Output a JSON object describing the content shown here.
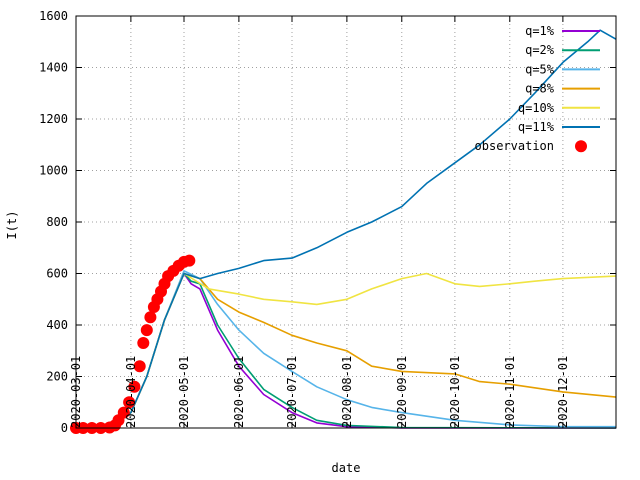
{
  "chart_data": {
    "type": "line",
    "title": "",
    "xlabel": "date",
    "ylabel": "I(t)",
    "xlim": [
      "2020-03-01",
      "2020-12-31"
    ],
    "ylim": [
      0,
      1600
    ],
    "grid": true,
    "legend_position": "top-right",
    "y_ticks": [
      0,
      200,
      400,
      600,
      800,
      1000,
      1200,
      1400,
      1600
    ],
    "x_ticks": [
      "2020-03-01",
      "2020-04-01",
      "2020-05-01",
      "2020-06-01",
      "2020-07-01",
      "2020-08-01",
      "2020-09-01",
      "2020-10-01",
      "2020-11-01",
      "2020-12-01"
    ],
    "series": [
      {
        "name": "q=1%",
        "color": "#9400d3",
        "points": [
          [
            "2020-03-01",
            0
          ],
          [
            "2020-03-20",
            0
          ],
          [
            "2020-04-01",
            60
          ],
          [
            "2020-04-10",
            200
          ],
          [
            "2020-04-20",
            420
          ],
          [
            "2020-05-01",
            600
          ],
          [
            "2020-05-05",
            560
          ],
          [
            "2020-05-10",
            540
          ],
          [
            "2020-05-15",
            460
          ],
          [
            "2020-05-20",
            380
          ],
          [
            "2020-06-01",
            240
          ],
          [
            "2020-06-15",
            130
          ],
          [
            "2020-07-01",
            60
          ],
          [
            "2020-07-15",
            20
          ],
          [
            "2020-08-01",
            5
          ],
          [
            "2020-09-01",
            0
          ],
          [
            "2020-12-31",
            0
          ]
        ]
      },
      {
        "name": "q=2%",
        "color": "#009e73",
        "points": [
          [
            "2020-03-01",
            0
          ],
          [
            "2020-03-20",
            0
          ],
          [
            "2020-04-01",
            60
          ],
          [
            "2020-04-10",
            200
          ],
          [
            "2020-04-20",
            420
          ],
          [
            "2020-05-01",
            600
          ],
          [
            "2020-05-05",
            570
          ],
          [
            "2020-05-10",
            560
          ],
          [
            "2020-05-15",
            480
          ],
          [
            "2020-05-20",
            400
          ],
          [
            "2020-06-01",
            270
          ],
          [
            "2020-06-15",
            150
          ],
          [
            "2020-07-01",
            80
          ],
          [
            "2020-07-15",
            30
          ],
          [
            "2020-08-01",
            10
          ],
          [
            "2020-09-01",
            2
          ],
          [
            "2020-12-31",
            0
          ]
        ]
      },
      {
        "name": "q=5%",
        "color": "#56b4e9",
        "points": [
          [
            "2020-03-01",
            0
          ],
          [
            "2020-03-20",
            0
          ],
          [
            "2020-04-01",
            60
          ],
          [
            "2020-04-10",
            200
          ],
          [
            "2020-04-20",
            420
          ],
          [
            "2020-05-01",
            610
          ],
          [
            "2020-05-10",
            580
          ],
          [
            "2020-05-20",
            480
          ],
          [
            "2020-06-01",
            380
          ],
          [
            "2020-06-15",
            290
          ],
          [
            "2020-07-01",
            220
          ],
          [
            "2020-07-15",
            160
          ],
          [
            "2020-08-01",
            110
          ],
          [
            "2020-08-15",
            80
          ],
          [
            "2020-09-01",
            60
          ],
          [
            "2020-10-01",
            30
          ],
          [
            "2020-11-01",
            12
          ],
          [
            "2020-12-01",
            5
          ],
          [
            "2020-12-31",
            5
          ]
        ]
      },
      {
        "name": "q=8%",
        "color": "#e69f00",
        "points": [
          [
            "2020-03-01",
            0
          ],
          [
            "2020-03-20",
            0
          ],
          [
            "2020-04-01",
            60
          ],
          [
            "2020-04-10",
            200
          ],
          [
            "2020-04-20",
            420
          ],
          [
            "2020-05-01",
            600
          ],
          [
            "2020-05-10",
            580
          ],
          [
            "2020-05-20",
            500
          ],
          [
            "2020-06-01",
            450
          ],
          [
            "2020-06-15",
            410
          ],
          [
            "2020-07-01",
            360
          ],
          [
            "2020-07-15",
            330
          ],
          [
            "2020-08-01",
            300
          ],
          [
            "2020-08-15",
            240
          ],
          [
            "2020-09-01",
            220
          ],
          [
            "2020-10-01",
            210
          ],
          [
            "2020-10-15",
            180
          ],
          [
            "2020-11-01",
            170
          ],
          [
            "2020-12-01",
            140
          ],
          [
            "2020-12-31",
            120
          ]
        ]
      },
      {
        "name": "q=10%",
        "color": "#f0e442",
        "points": [
          [
            "2020-03-01",
            0
          ],
          [
            "2020-03-20",
            0
          ],
          [
            "2020-04-01",
            60
          ],
          [
            "2020-04-10",
            200
          ],
          [
            "2020-04-20",
            420
          ],
          [
            "2020-05-01",
            600
          ],
          [
            "2020-05-15",
            540
          ],
          [
            "2020-06-01",
            520
          ],
          [
            "2020-06-15",
            500
          ],
          [
            "2020-07-01",
            490
          ],
          [
            "2020-07-15",
            480
          ],
          [
            "2020-08-01",
            500
          ],
          [
            "2020-08-15",
            540
          ],
          [
            "2020-09-01",
            580
          ],
          [
            "2020-09-15",
            600
          ],
          [
            "2020-10-01",
            560
          ],
          [
            "2020-10-15",
            550
          ],
          [
            "2020-11-01",
            560
          ],
          [
            "2020-11-15",
            570
          ],
          [
            "2020-12-01",
            580
          ],
          [
            "2020-12-31",
            590
          ]
        ]
      },
      {
        "name": "q=11%",
        "color": "#0072b2",
        "points": [
          [
            "2020-03-01",
            0
          ],
          [
            "2020-03-20",
            0
          ],
          [
            "2020-04-01",
            60
          ],
          [
            "2020-04-10",
            200
          ],
          [
            "2020-04-20",
            420
          ],
          [
            "2020-05-01",
            600
          ],
          [
            "2020-05-10",
            580
          ],
          [
            "2020-05-20",
            600
          ],
          [
            "2020-06-01",
            620
          ],
          [
            "2020-06-15",
            650
          ],
          [
            "2020-07-01",
            660
          ],
          [
            "2020-07-15",
            700
          ],
          [
            "2020-08-01",
            760
          ],
          [
            "2020-08-15",
            800
          ],
          [
            "2020-09-01",
            860
          ],
          [
            "2020-09-15",
            950
          ],
          [
            "2020-10-01",
            1030
          ],
          [
            "2020-10-15",
            1100
          ],
          [
            "2020-11-01",
            1200
          ],
          [
            "2020-11-15",
            1300
          ],
          [
            "2020-12-01",
            1420
          ],
          [
            "2020-12-15",
            1500
          ],
          [
            "2020-12-22",
            1545
          ],
          [
            "2020-12-31",
            1510
          ]
        ]
      }
    ],
    "observation": {
      "name": "observation",
      "color": "#ff0000",
      "points": [
        [
          "2020-03-01",
          0
        ],
        [
          "2020-03-05",
          0
        ],
        [
          "2020-03-10",
          0
        ],
        [
          "2020-03-15",
          0
        ],
        [
          "2020-03-20",
          2
        ],
        [
          "2020-03-23",
          10
        ],
        [
          "2020-03-25",
          30
        ],
        [
          "2020-03-28",
          60
        ],
        [
          "2020-03-31",
          100
        ],
        [
          "2020-04-03",
          160
        ],
        [
          "2020-04-06",
          240
        ],
        [
          "2020-04-08",
          330
        ],
        [
          "2020-04-10",
          380
        ],
        [
          "2020-04-12",
          430
        ],
        [
          "2020-04-14",
          470
        ],
        [
          "2020-04-16",
          500
        ],
        [
          "2020-04-18",
          530
        ],
        [
          "2020-04-20",
          560
        ],
        [
          "2020-04-22",
          590
        ],
        [
          "2020-04-25",
          610
        ],
        [
          "2020-04-28",
          630
        ],
        [
          "2020-05-01",
          645
        ],
        [
          "2020-05-04",
          650
        ]
      ]
    }
  }
}
